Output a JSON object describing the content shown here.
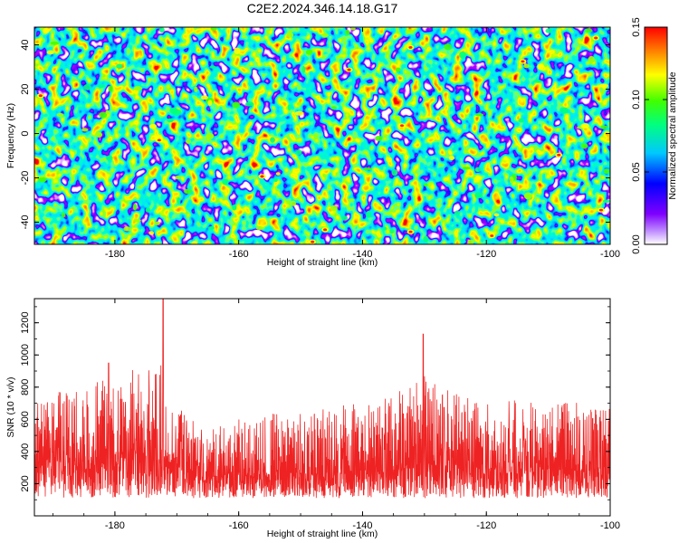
{
  "chart_data": [
    {
      "type": "heatmap",
      "title": "C2E2.2024.346.14.18.G17",
      "xlabel": "Height of straight line (km)",
      "ylabel": "Frequency (Hz)",
      "xlim": [
        -193,
        -100
      ],
      "ylim": [
        -50,
        48
      ],
      "x_ticks": [
        "-180",
        "-160",
        "-140",
        "-120",
        "-100"
      ],
      "y_ticks": [
        "40",
        "20",
        "0",
        "-20",
        "-40"
      ],
      "colorbar": {
        "label": "Normalized spectral amplitude",
        "range": [
          0.0,
          0.15
        ],
        "ticks": [
          "0.00",
          "0.05",
          "0.10",
          "0.15"
        ],
        "colormap": [
          "#ffffff",
          "#7f00ff",
          "#0000ff",
          "#00c8ff",
          "#00ff80",
          "#40ff00",
          "#ffff00",
          "#ff8000",
          "#ff0000"
        ]
      },
      "grid": false,
      "note_values": "speckled noise field, mostly 0.02-0.06 with isolated peaks up to ~0.15"
    },
    {
      "type": "line",
      "xlabel": "Height of straight line (km)",
      "ylabel": "SNR (10 * v/v)",
      "xlim": [
        -193,
        -100
      ],
      "ylim": [
        0,
        1350
      ],
      "x_ticks": [
        "-180",
        "-160",
        "-140",
        "-120",
        "-100"
      ],
      "y_ticks": [
        "1200",
        "1000",
        "800",
        "600",
        "400",
        "200"
      ],
      "line_color": "#ee2222",
      "grid": false,
      "envelope": {
        "x": [
          -193,
          -185,
          -180,
          -178,
          -175,
          -172,
          -170,
          -168,
          -165,
          -160,
          -155,
          -150,
          -145,
          -140,
          -135,
          -132,
          -130,
          -128,
          -125,
          -120,
          -115,
          -110,
          -105,
          -100
        ],
        "baseline": [
          330,
          340,
          350,
          360,
          350,
          340,
          300,
          260,
          230,
          240,
          250,
          255,
          260,
          260,
          280,
          310,
          330,
          320,
          300,
          280,
          280,
          285,
          285,
          280
        ],
        "amplitude": [
          420,
          470,
          520,
          560,
          540,
          640,
          420,
          340,
          330,
          360,
          400,
          380,
          420,
          440,
          470,
          560,
          600,
          520,
          460,
          420,
          440,
          420,
          420,
          400
        ]
      },
      "peaks": [
        {
          "x": -172.2,
          "y": 1350
        },
        {
          "x": -130.2,
          "y": 1130
        },
        {
          "x": -181.0,
          "y": 950
        }
      ]
    }
  ]
}
